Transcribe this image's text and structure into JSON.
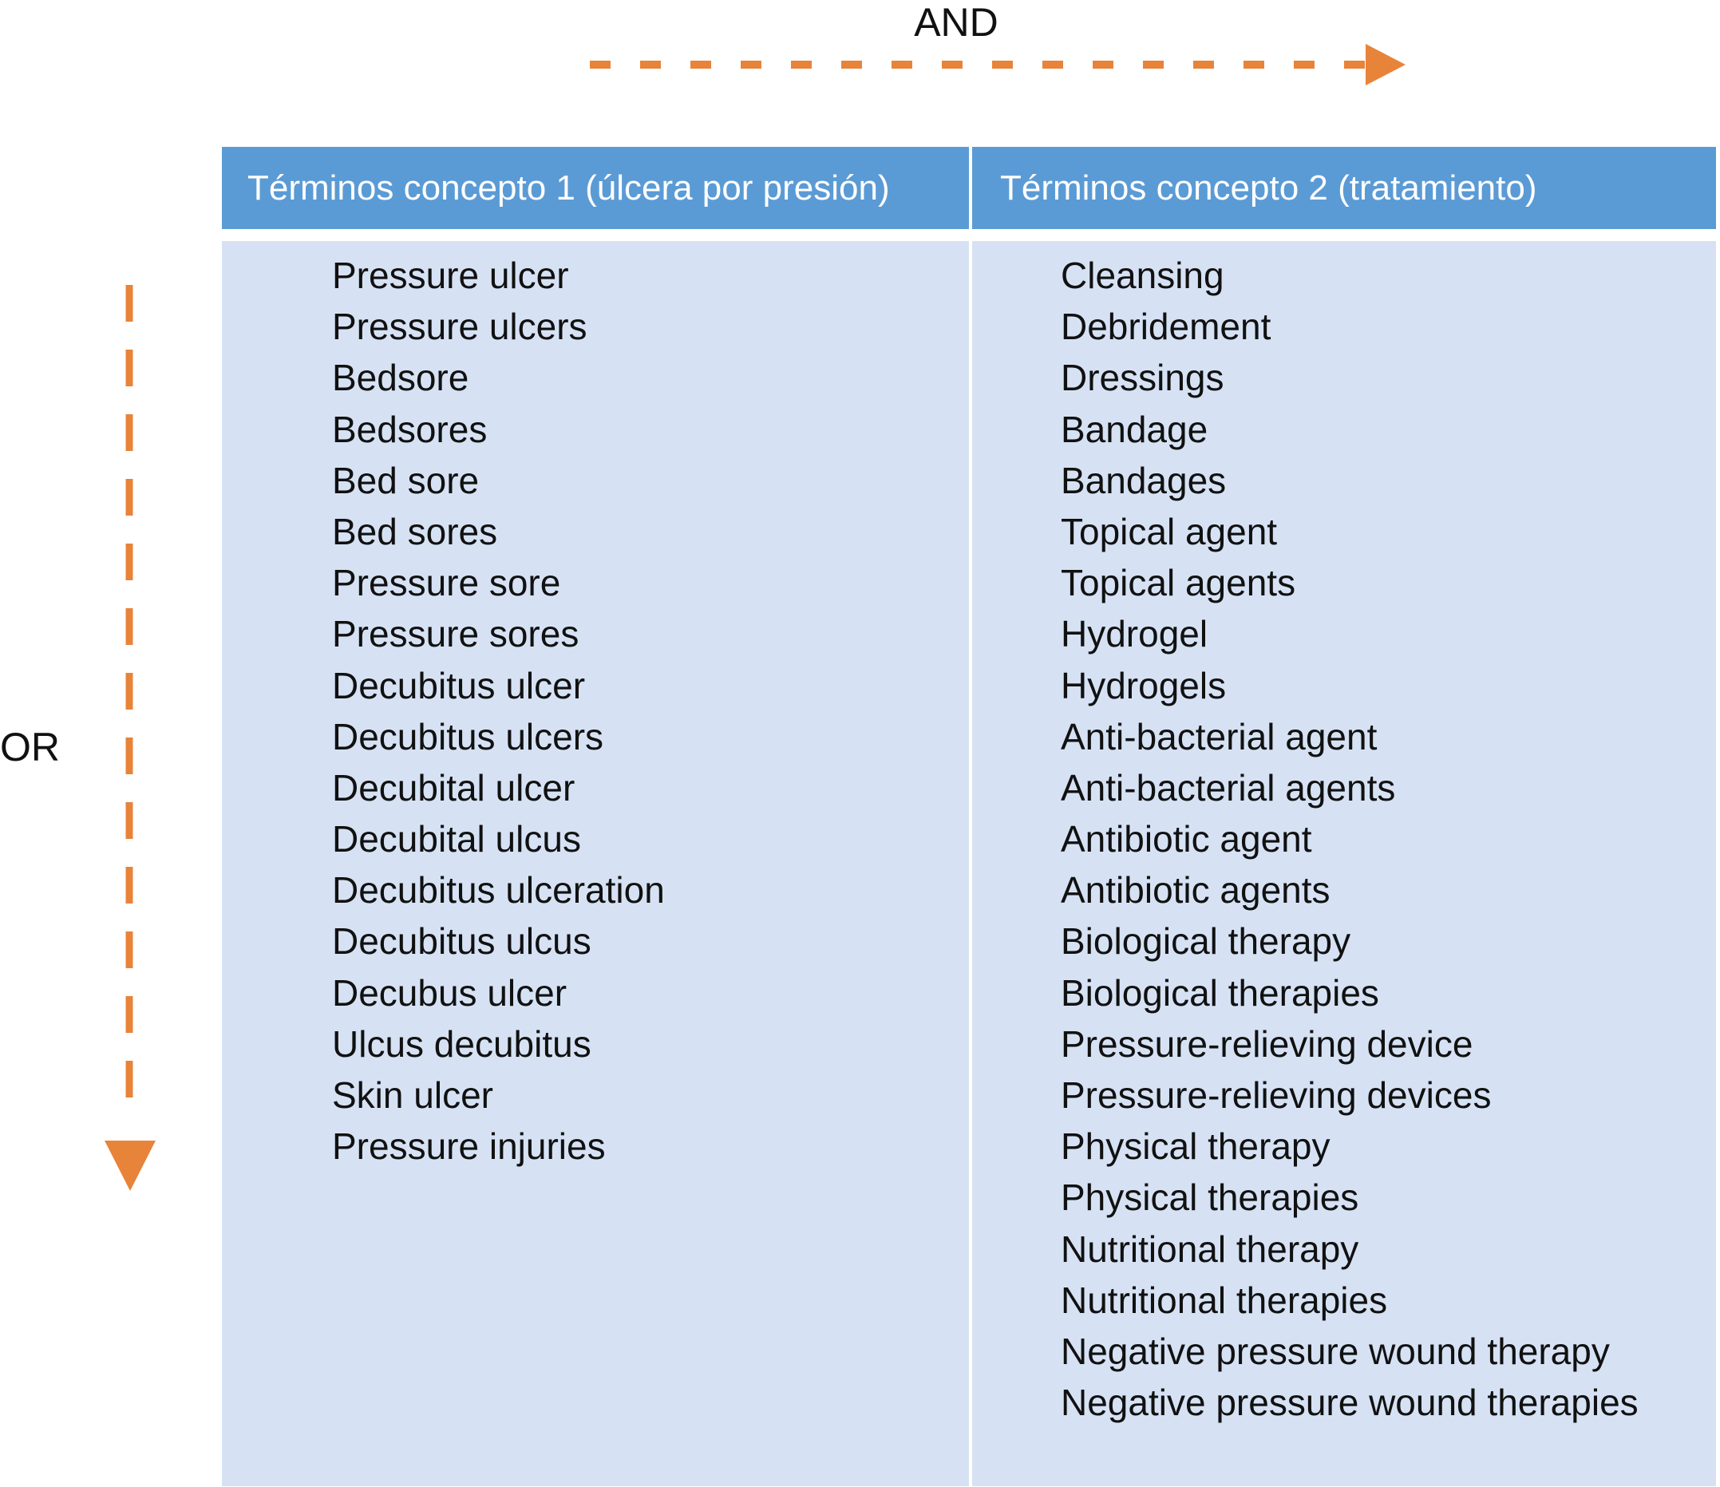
{
  "operators": {
    "and": "AND",
    "or": "OR"
  },
  "colors": {
    "arrow": "#e8833a",
    "header": "#5b9bd5",
    "body": "#d6e2f4"
  },
  "columns": [
    {
      "header": "Términos concepto 1 (úlcera por presión)",
      "terms": [
        "Pressure ulcer",
        "Pressure ulcers",
        "Bedsore",
        "Bedsores",
        "Bed sore",
        "Bed sores",
        "Pressure sore",
        "Pressure sores",
        "Decubitus ulcer",
        "Decubitus ulcers",
        "Decubital ulcer",
        "Decubital ulcus",
        "Decubitus ulceration",
        "Decubitus ulcus",
        "Decubus ulcer",
        "Ulcus decubitus",
        "Skin ulcer",
        "Pressure injuries"
      ]
    },
    {
      "header": "Términos concepto 2 (tratamiento)",
      "terms": [
        "Cleansing",
        "Debridement",
        "Dressings",
        "Bandage",
        "Bandages",
        "Topical agent",
        "Topical agents",
        "Hydrogel",
        "Hydrogels",
        "Anti-bacterial agent",
        "Anti-bacterial agents",
        "Antibiotic agent",
        "Antibiotic agents",
        "Biological therapy",
        "Biological therapies",
        "Pressure-relieving device",
        "Pressure-relieving devices",
        "Physical therapy",
        "Physical therapies",
        "Nutritional therapy",
        "Nutritional therapies",
        "Negative pressure wound therapy",
        "Negative pressure wound therapies"
      ]
    }
  ]
}
